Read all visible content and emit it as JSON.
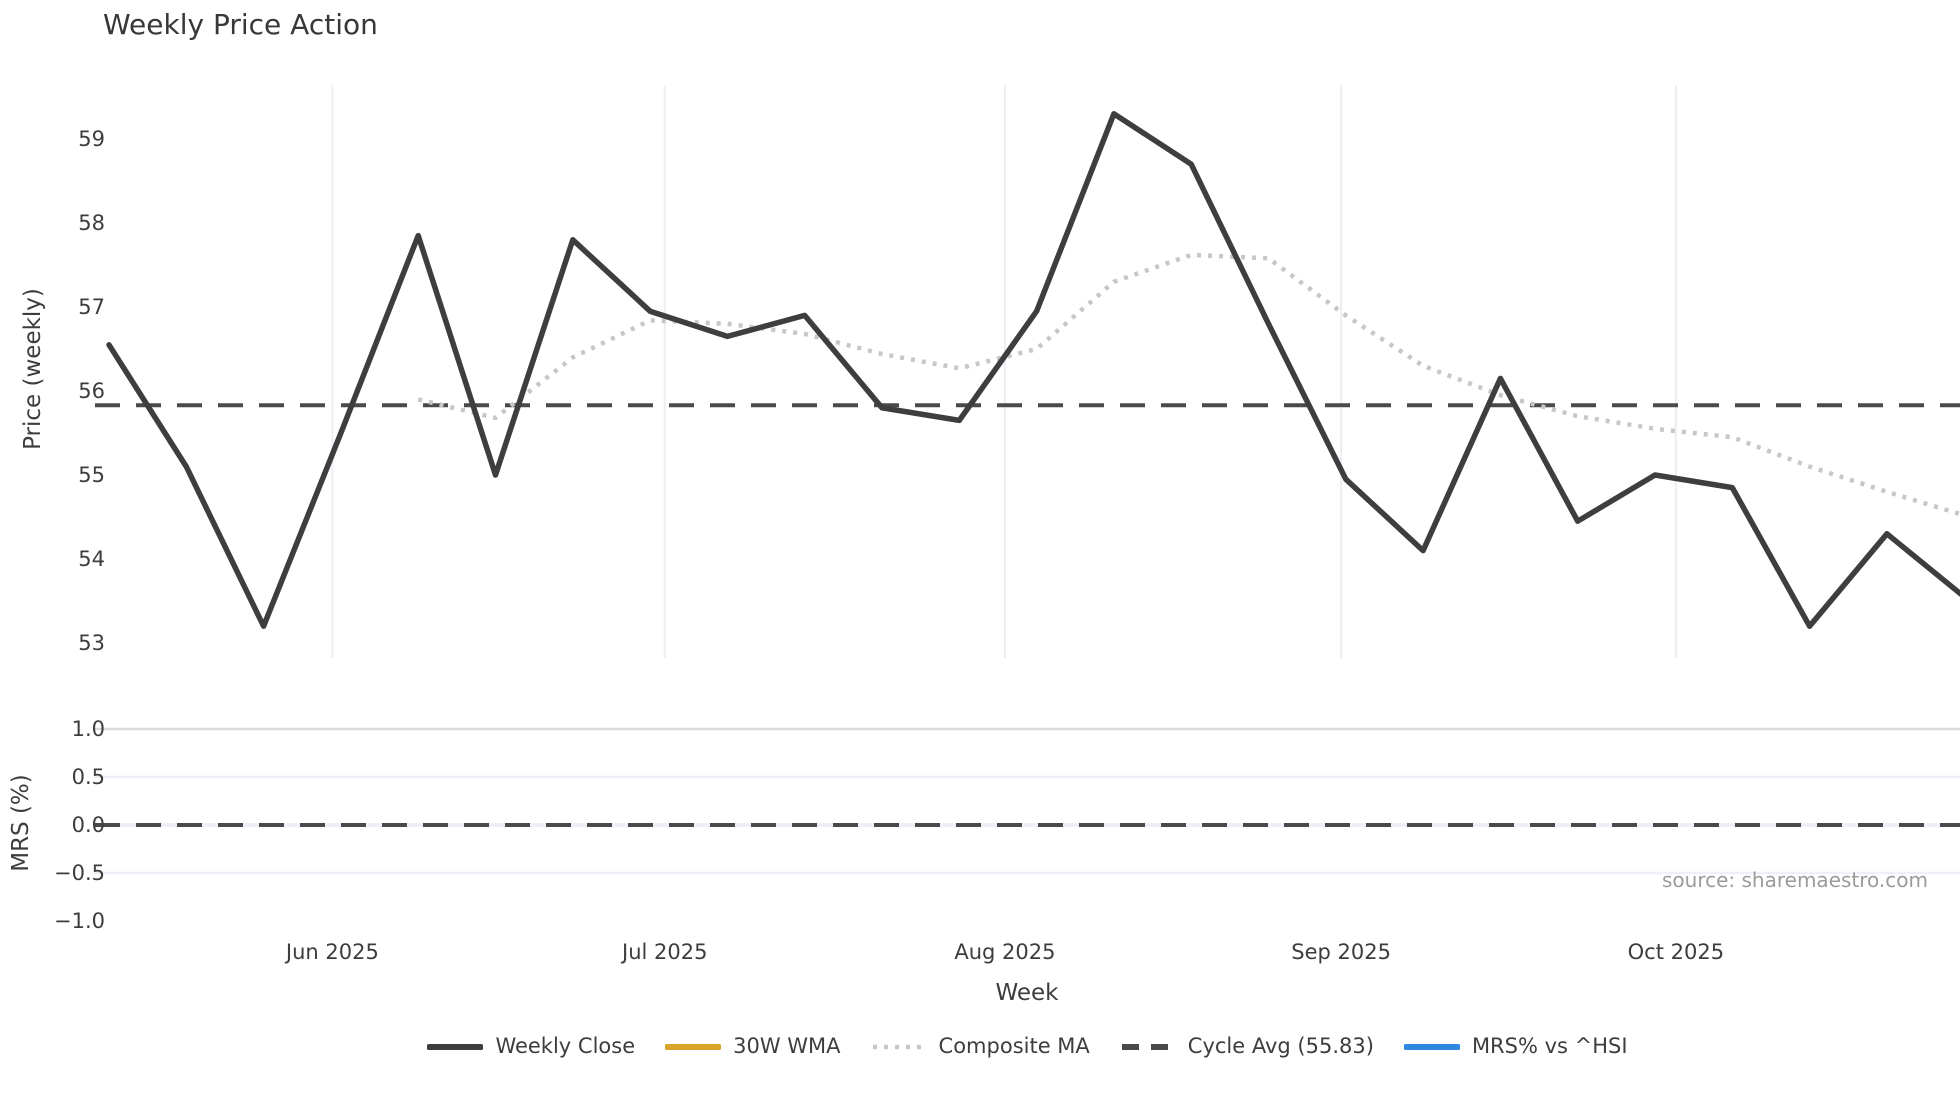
{
  "title": "Weekly Price Action",
  "source_text": "source: sharemaestro.com",
  "xlabel": "Week",
  "price_panel": {
    "ylabel": "Price (weekly)",
    "ytick_labels": [
      "59",
      "58",
      "57",
      "56",
      "55",
      "54",
      "53"
    ],
    "ytick_values": [
      59,
      58,
      57,
      56,
      55,
      54,
      53
    ]
  },
  "mrs_panel": {
    "ylabel": "MRS (%)",
    "ytick_labels": [
      "1.0",
      "0.5",
      "0.0",
      "−0.5",
      "−1.0"
    ],
    "ytick_values": [
      1.0,
      0.5,
      0.0,
      -0.5,
      -1.0
    ]
  },
  "xtick_labels": [
    "Jun 2025",
    "Jul 2025",
    "Aug 2025",
    "Sep 2025",
    "Oct 2025"
  ],
  "legend": [
    {
      "label": "Weekly Close",
      "color": "#3e3e40",
      "style": "solid"
    },
    {
      "label": "30W WMA",
      "color": "#d9a427",
      "style": "solid"
    },
    {
      "label": "Composite MA",
      "color": "#c7c7c7",
      "style": "dotted"
    },
    {
      "label": "Cycle Avg (55.83)",
      "color": "#4a4a4c",
      "style": "dashed"
    },
    {
      "label": "MRS% vs ^HSI",
      "color": "#2e86de",
      "style": "solid"
    }
  ],
  "colors": {
    "weekly_close": "#3e3e40",
    "wma_30w": "#d9a427",
    "composite_ma": "#c7c7c7",
    "cycle_avg": "#4a4a4c",
    "mrs_line": "#2e86de",
    "month_gridline": "#ededf3",
    "mrs_gridline_major": "#d9d9df",
    "mrs_gridline_minor": "#eef0f7"
  },
  "chart_data": {
    "type": "line",
    "title": "Weekly Price Action",
    "xlabel": "Week",
    "x_unit": "week index (weekly data, mid-May through late Oct 2025)",
    "x": [
      1,
      2,
      3,
      4,
      5,
      6,
      7,
      8,
      9,
      10,
      11,
      12,
      13,
      14,
      15,
      16,
      17,
      18,
      19,
      20,
      21,
      22,
      23,
      24,
      25
    ],
    "x_month_ticks": [
      {
        "label": "Jun 2025",
        "week_position": 3.89
      },
      {
        "label": "Jul 2025",
        "week_position": 8.19
      },
      {
        "label": "Aug 2025",
        "week_position": 12.59
      },
      {
        "label": "Sep 2025",
        "week_position": 16.94
      },
      {
        "label": "Oct 2025",
        "week_position": 21.27
      }
    ],
    "price_axis": {
      "label": "Price (weekly)",
      "ticks": [
        53,
        54,
        55,
        56,
        57,
        58,
        59
      ],
      "ylim": [
        52.8,
        59.65
      ],
      "grid": "vertical months only"
    },
    "mrs_axis": {
      "label": "MRS (%)",
      "ticks": [
        -1.0,
        -0.5,
        0.0,
        0.5,
        1.0
      ],
      "ylim": [
        -1.25,
        1.25
      ],
      "grid": "horizontal"
    },
    "legend_position": "bottom center",
    "series": [
      {
        "name": "Weekly Close",
        "panel": "price",
        "style": "solid",
        "values": [
          56.55,
          55.1,
          53.2,
          55.5,
          57.85,
          55.0,
          57.8,
          56.95,
          56.65,
          56.9,
          55.8,
          55.65,
          56.95,
          59.3,
          58.7,
          56.8,
          54.95,
          54.1,
          56.15,
          54.45,
          55.0,
          54.85,
          53.2,
          54.3,
          53.55
        ]
      },
      {
        "name": "30W WMA",
        "panel": "price",
        "style": "solid",
        "values": [],
        "note": "legend entry present but no line visible in plotted window"
      },
      {
        "name": "Composite MA",
        "panel": "price",
        "style": "dotted",
        "values": [
          null,
          null,
          null,
          null,
          55.9,
          55.68,
          56.4,
          56.84,
          56.8,
          56.68,
          56.44,
          56.27,
          56.5,
          57.3,
          57.62,
          57.58,
          56.9,
          56.3,
          55.95,
          55.7,
          55.55,
          55.45,
          55.1,
          54.8,
          54.52
        ]
      },
      {
        "name": "Cycle Avg (55.83)",
        "panel": "price",
        "style": "dashed",
        "constant_value": 55.83
      },
      {
        "name": "MRS% vs ^HSI",
        "panel": "mrs",
        "style": "solid",
        "values": [],
        "note": "legend entry present but no line visible in MRS panel; dashed zero reference line at 0.0"
      }
    ],
    "mrs_zero_line": 0.0
  }
}
